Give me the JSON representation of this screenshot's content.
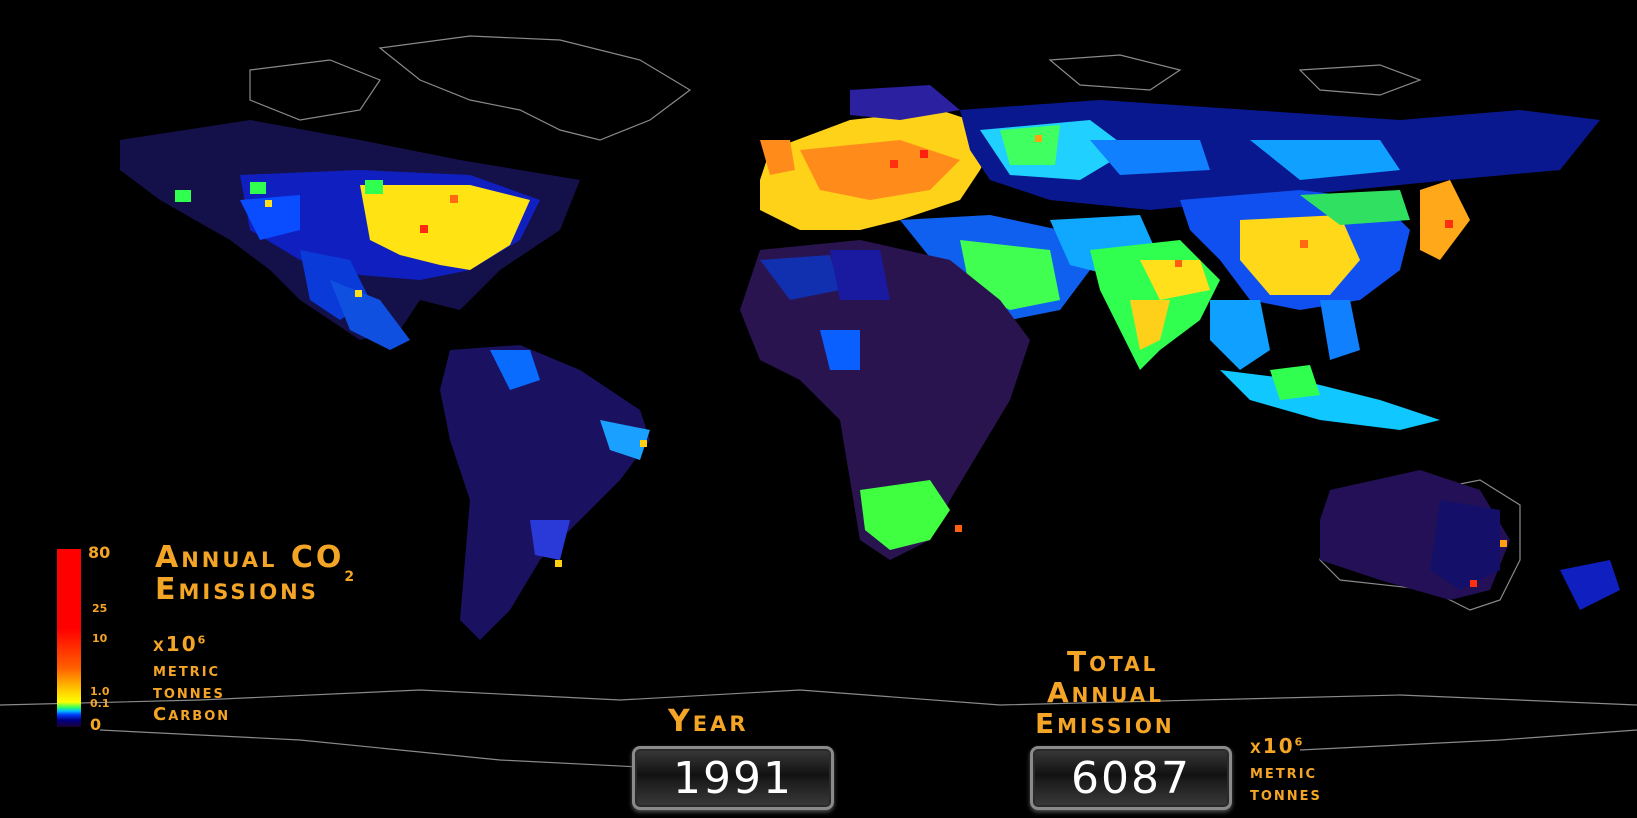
{
  "legend": {
    "title_line1": "Annual CO",
    "title_sub": "2",
    "title_line2": "Emissions",
    "ticks": [
      "80",
      "25",
      "10",
      "1.0",
      "0.1",
      "0"
    ],
    "unit_x10": "x10",
    "unit_exp": "6",
    "unit_line1": "metric",
    "unit_line2": "tonnes",
    "unit_line3": "Carbon",
    "colors": [
      "#1a0030",
      "#00008a",
      "#0040ff",
      "#00c0ff",
      "#30ff60",
      "#ffff00",
      "#ffc000",
      "#ff6000",
      "#ff0000"
    ]
  },
  "year": {
    "label": "Year",
    "value": "1991"
  },
  "total": {
    "label_line1": "Total",
    "label_line2": "Annual",
    "label_line3": "Emission",
    "value": "6087",
    "unit_x10": "x10",
    "unit_exp": "6",
    "unit_line1": "metric",
    "unit_line2": "tonnes"
  },
  "theme": {
    "accent": "#f5a526",
    "background": "#000000"
  }
}
